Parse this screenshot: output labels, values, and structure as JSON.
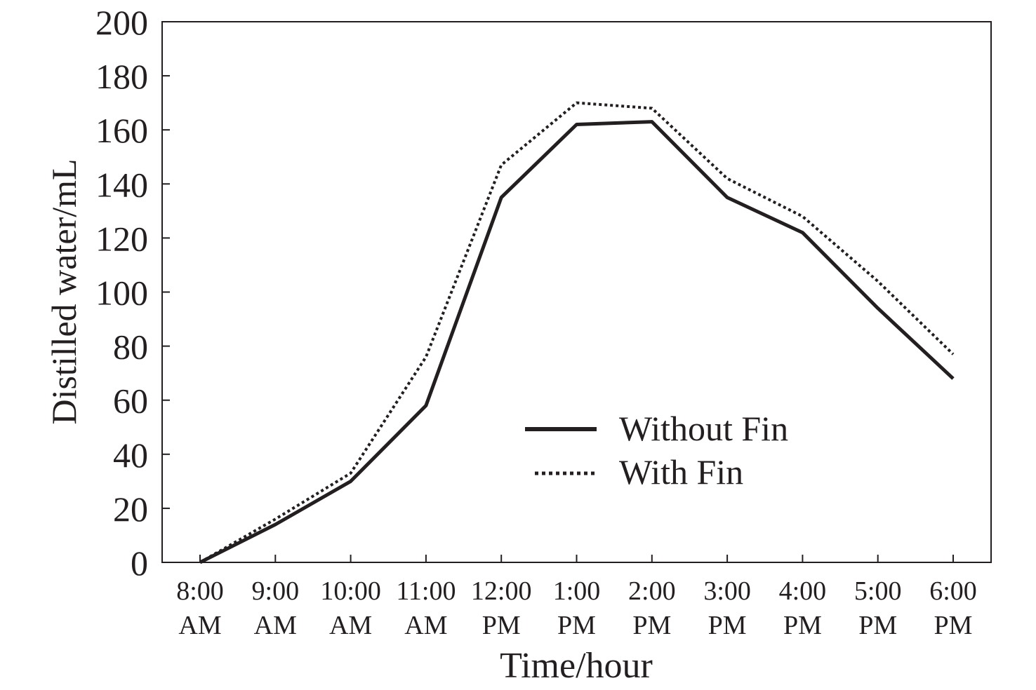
{
  "chart_data": {
    "type": "line",
    "xlabel": "Time/hour",
    "ylabel": "Distilled water/mL",
    "ylim": [
      0,
      200
    ],
    "yticks": [
      0,
      20,
      40,
      60,
      80,
      100,
      120,
      140,
      160,
      180,
      200
    ],
    "categories": [
      [
        "8:00",
        "AM"
      ],
      [
        "9:00",
        "AM"
      ],
      [
        "10:00",
        "AM"
      ],
      [
        "11:00",
        "AM"
      ],
      [
        "12:00",
        "PM"
      ],
      [
        "1:00",
        "PM"
      ],
      [
        "2:00",
        "PM"
      ],
      [
        "3:00",
        "PM"
      ],
      [
        "4:00",
        "PM"
      ],
      [
        "5:00",
        "PM"
      ],
      [
        "6:00",
        "PM"
      ]
    ],
    "series": [
      {
        "name": "Without Fin",
        "style": "solid",
        "values": [
          0,
          14,
          30,
          58,
          135,
          162,
          163,
          135,
          122,
          94,
          68
        ]
      },
      {
        "name": "With Fin",
        "style": "dotted",
        "values": [
          0,
          16,
          33,
          76,
          147,
          170,
          168,
          142,
          128,
          104,
          77
        ]
      }
    ],
    "legend_position": "lower-right",
    "grid": false,
    "line_color": "#231f20"
  }
}
